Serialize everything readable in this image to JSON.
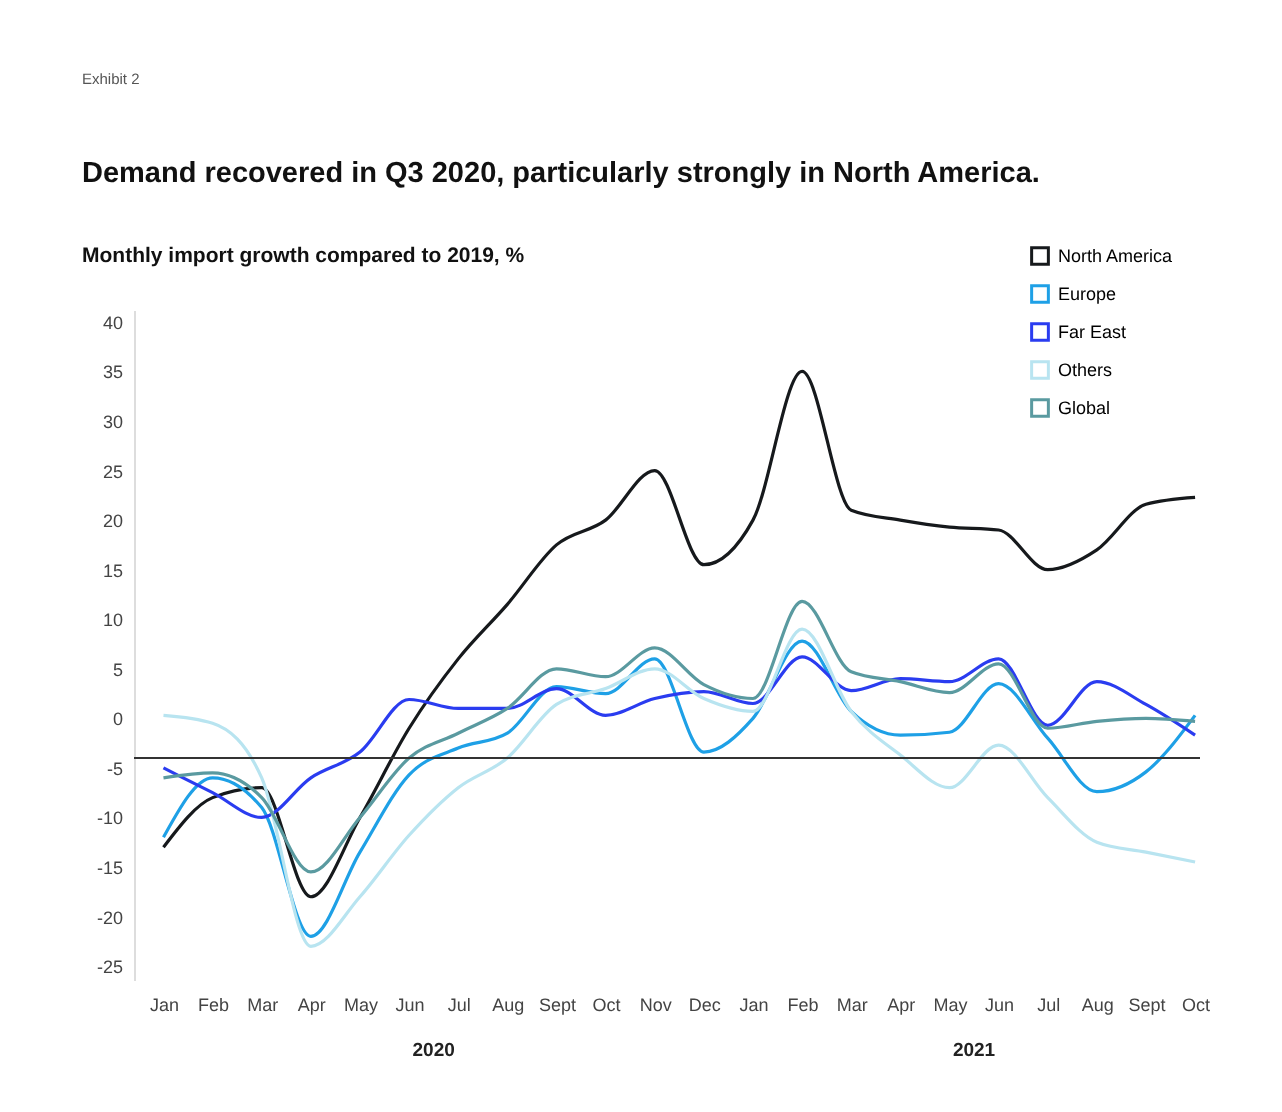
{
  "chart_data": {
    "type": "line",
    "title": "Demand recovered in Q3 2020, particularly strongly in North America.",
    "ylabel": "Monthly import growth compared to 2019, %",
    "annotations": [
      "Exhibit 2",
      "2020",
      "2021"
    ],
    "categories": [
      "Jan",
      "Feb",
      "Mar",
      "Apr",
      "May",
      "Jun",
      "Jul",
      "Aug",
      "Sept",
      "Oct",
      "Nov",
      "Dec",
      "Jan",
      "Feb",
      "Mar",
      "Apr",
      "May",
      "Jun",
      "Jul",
      "Aug",
      "Sept",
      "Oct"
    ],
    "series": [
      {
        "name": "North America",
        "color": "#16191c",
        "values": [
          -13,
          -8,
          -7,
          -18,
          -10,
          -1,
          6,
          11.5,
          17.5,
          20,
          25,
          15.5,
          20,
          35,
          21,
          20,
          19.3,
          19,
          15,
          17,
          21.6,
          22.3
        ]
      },
      {
        "name": "Europe",
        "color": "#1ea0e6",
        "values": [
          -12,
          -6,
          -9,
          -22,
          -13.5,
          -5.7,
          -3,
          -1.5,
          3.2,
          2.5,
          6,
          -3.4,
          0,
          7.8,
          0.7,
          -1.7,
          -1.4,
          3.5,
          -2,
          -7.4,
          -5.4,
          0.3
        ]
      },
      {
        "name": "Far East",
        "color": "#2a3cf0",
        "values": [
          -5,
          -7.5,
          -10,
          -6,
          -3.4,
          1.9,
          1,
          1,
          3,
          0.3,
          2,
          2.7,
          1.5,
          6.2,
          2.8,
          4,
          3.7,
          6,
          -0.7,
          3.7,
          1.4,
          -1.7
        ]
      },
      {
        "name": "Others",
        "color": "#b8e4f0",
        "values": [
          0.3,
          -0.5,
          -6,
          -23,
          -18,
          -11.8,
          -7,
          -4,
          1.4,
          3,
          5,
          2,
          0.7,
          9,
          0.7,
          -3.7,
          -7,
          -2.7,
          -8,
          -12.5,
          -13.5,
          -14.5
        ]
      },
      {
        "name": "Global",
        "color": "#5a9aa0",
        "values": [
          -6,
          -5.5,
          -8,
          -15.5,
          -10,
          -4,
          -1.5,
          1,
          5,
          4.2,
          7.1,
          3.4,
          2,
          11.8,
          4.7,
          3.7,
          2.6,
          5.5,
          -1,
          -0.3,
          0,
          -0.3
        ]
      }
    ],
    "ylim": [
      -26.4,
      41.2
    ],
    "yticks": [
      -25,
      -20,
      -15,
      -10,
      -5,
      0,
      5,
      10,
      15,
      20,
      25,
      30,
      35,
      40
    ],
    "ref_lines": [
      {
        "axis": "y",
        "value": -4,
        "color": "#333333"
      }
    ],
    "legend": "top right",
    "grid": false,
    "marker": "none",
    "line_style": "solid"
  }
}
